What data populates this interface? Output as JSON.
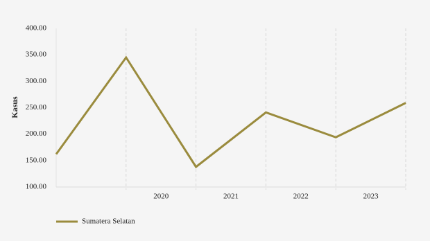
{
  "chart_data": {
    "type": "line",
    "y_label": "Kasus",
    "x": [
      2018.5,
      2019.5,
      2020.5,
      2021.5,
      2022.5,
      2023.5
    ],
    "xlim": [
      2018.5,
      2023.5
    ],
    "xticks": [
      2020,
      2021,
      2022,
      2023
    ],
    "series": [
      {
        "name": "Sumatera Selatan",
        "color": "#9a8b3d",
        "values": [
          162,
          345,
          138,
          241,
          194,
          259
        ]
      }
    ],
    "ylim": [
      100,
      400
    ],
    "yticks": [
      {
        "value": 100,
        "label": "100.00"
      },
      {
        "value": 150,
        "label": "150.00"
      },
      {
        "value": 200,
        "label": "200.00"
      },
      {
        "value": 250,
        "label": "250.00"
      },
      {
        "value": 300,
        "label": "300.00"
      },
      {
        "value": 350,
        "label": "350.00"
      },
      {
        "value": 400,
        "label": "400.00"
      }
    ],
    "grid": true,
    "legend": "bottom-left"
  }
}
